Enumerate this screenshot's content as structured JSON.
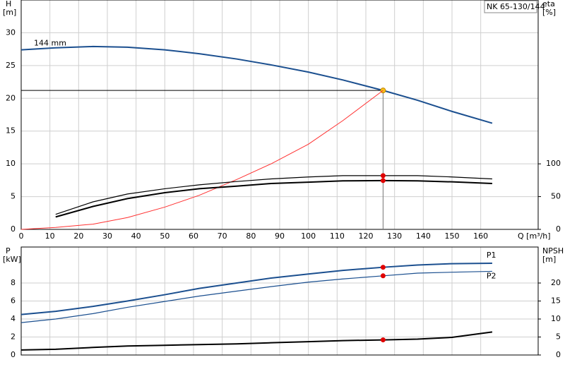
{
  "chart_data": [
    {
      "type": "line",
      "title": "NK 65-130/144",
      "ylabel": "H",
      "yunit": "[m]",
      "y2label": "eta",
      "y2unit": "[%]",
      "xlabel": "Q [m³/h]",
      "x": [
        0,
        12,
        25,
        37,
        50,
        62,
        75,
        87,
        100,
        112,
        126,
        138,
        150,
        164
      ],
      "xlim": [
        0,
        180
      ],
      "xticks": [
        0,
        10,
        20,
        30,
        40,
        50,
        60,
        70,
        80,
        90,
        100,
        110,
        120,
        130,
        140,
        150,
        160
      ],
      "ylim": [
        0,
        35
      ],
      "yticks": [
        0,
        5,
        10,
        15,
        20,
        25,
        30
      ],
      "y2lim": [
        0,
        350
      ],
      "y2ticks": [
        0,
        50,
        100
      ],
      "grid": true,
      "marker_x": 126,
      "duty_lines": true,
      "name_at": "start",
      "series": [
        {
          "name": "144 mm",
          "color": "#1b4f8f",
          "width": 2,
          "marker_color": "#f7c21a",
          "values": [
            27.4,
            27.7,
            27.9,
            27.8,
            27.4,
            26.8,
            26.0,
            25.1,
            24.0,
            22.8,
            21.2,
            19.7,
            18.0,
            16.2
          ]
        },
        {
          "color": "#ff3030",
          "width": 1,
          "values": [
            0,
            0.3,
            0.8,
            1.8,
            3.4,
            5.2,
            7.6,
            10.0,
            13.0,
            16.6,
            21.2,
            null,
            null,
            null
          ]
        },
        {
          "color": "#000000",
          "width": 1.2,
          "axis": "y2",
          "marker_color": "#e00000",
          "values": [
            null,
            23,
            42,
            54,
            62,
            68,
            73,
            77,
            80,
            82,
            82,
            82,
            80,
            77
          ]
        },
        {
          "color": "#000000",
          "width": 2,
          "axis": "y2",
          "marker_color": "#e00000",
          "values": [
            null,
            19,
            35,
            47,
            56,
            62,
            66,
            70,
            72,
            74,
            74.5,
            74,
            72.5,
            70
          ]
        }
      ]
    },
    {
      "type": "line",
      "ylabel": "P",
      "yunit": "[kW]",
      "y2label": "NPSH",
      "y2unit": "[m]",
      "x": [
        0,
        12,
        25,
        37,
        50,
        62,
        75,
        87,
        100,
        112,
        126,
        138,
        150,
        164
      ],
      "xlim": [
        0,
        180
      ],
      "ylim": [
        0,
        12
      ],
      "yticks": [
        0,
        2,
        4,
        6,
        8
      ],
      "y2lim": [
        0,
        30
      ],
      "y2ticks": [
        0,
        5,
        10,
        15,
        20
      ],
      "grid": true,
      "marker_x": 126,
      "name_at": "end",
      "series": [
        {
          "name": "P1",
          "color": "#1b4f8f",
          "width": 2,
          "marker_color": "#e00000",
          "values": [
            4.5,
            4.85,
            5.4,
            6.0,
            6.7,
            7.4,
            8.0,
            8.55,
            9.0,
            9.4,
            9.75,
            10.0,
            10.15,
            10.2
          ]
        },
        {
          "name": "P2",
          "color": "#1b4f8f",
          "width": 1.2,
          "marker_color": "#e00000",
          "values": [
            3.6,
            4.0,
            4.6,
            5.3,
            5.95,
            6.55,
            7.1,
            7.6,
            8.1,
            8.45,
            8.8,
            9.1,
            9.2,
            9.3
          ]
        },
        {
          "color": "#000000",
          "width": 2,
          "axis": "y2",
          "marker_color": "#e00000",
          "values": [
            1.4,
            1.6,
            2.1,
            2.5,
            2.7,
            2.9,
            3.1,
            3.4,
            3.7,
            4.0,
            4.2,
            4.4,
            4.9,
            6.4
          ]
        }
      ]
    }
  ]
}
